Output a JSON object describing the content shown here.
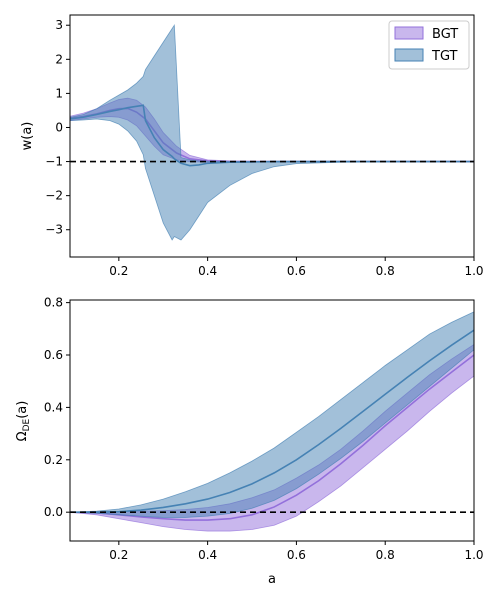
{
  "colors": {
    "bgt": "#9370DB",
    "tgt": "#4682B4",
    "ref_line": "#000000"
  },
  "chart_data": [
    {
      "type": "area",
      "title": "",
      "xlabel": "",
      "ylabel": "w(a)",
      "xlim": [
        0.09,
        1.0
      ],
      "ylim": [
        -3.8,
        3.3
      ],
      "x_ticks": [
        "0.2",
        "0.4",
        "0.6",
        "0.8",
        "1.0"
      ],
      "y_ticks": [
        "3",
        "2",
        "1",
        "0",
        "−1",
        "−2",
        "−3"
      ],
      "legend": {
        "placement": "top-right",
        "entries": [
          "BGT",
          "TGT"
        ]
      },
      "reference_line": {
        "y": -1,
        "style": "dashed"
      },
      "series": [
        {
          "name": "BGT",
          "color": "#9370DB",
          "x": [
            0.09,
            0.12,
            0.15,
            0.18,
            0.2,
            0.22,
            0.24,
            0.26,
            0.28,
            0.3,
            0.33,
            0.36,
            0.4,
            0.45,
            0.5,
            0.6,
            0.7,
            0.8,
            1.0
          ],
          "mean": [
            0.27,
            0.32,
            0.4,
            0.5,
            0.55,
            0.56,
            0.45,
            0.25,
            -0.1,
            -0.45,
            -0.75,
            -0.92,
            -0.98,
            -1.0,
            -1.0,
            -1.0,
            -1.0,
            -1.0,
            -1.0
          ],
          "lower": [
            0.2,
            0.25,
            0.3,
            0.32,
            0.3,
            0.22,
            0.05,
            -0.25,
            -0.55,
            -0.8,
            -0.95,
            -1.0,
            -1.02,
            -1.03,
            -1.02,
            -1.01,
            -1.0,
            -1.0,
            -1.0
          ],
          "upper": [
            0.33,
            0.42,
            0.55,
            0.72,
            0.82,
            0.86,
            0.8,
            0.6,
            0.25,
            -0.15,
            -0.55,
            -0.82,
            -0.95,
            -0.98,
            -0.99,
            -1.0,
            -1.0,
            -1.0,
            -1.0
          ]
        },
        {
          "name": "TGT",
          "color": "#4682B4",
          "x": [
            0.09,
            0.12,
            0.15,
            0.18,
            0.2,
            0.22,
            0.24,
            0.255,
            0.26,
            0.28,
            0.3,
            0.32,
            0.325,
            0.34,
            0.36,
            0.38,
            0.4,
            0.45,
            0.5,
            0.55,
            0.6,
            0.7,
            0.8,
            1.0
          ],
          "mean": [
            0.25,
            0.3,
            0.38,
            0.47,
            0.52,
            0.58,
            0.62,
            0.65,
            0.2,
            -0.3,
            -0.65,
            -0.85,
            -0.92,
            -1.05,
            -1.12,
            -1.1,
            -1.05,
            -1.02,
            -1.01,
            -1.0,
            -1.0,
            -1.0,
            -1.0,
            -1.0
          ],
          "lower": [
            0.2,
            0.22,
            0.25,
            0.2,
            0.1,
            -0.1,
            -0.4,
            -0.8,
            -1.2,
            -2.0,
            -2.8,
            -3.3,
            -3.2,
            -3.3,
            -3.0,
            -2.6,
            -2.2,
            -1.7,
            -1.35,
            -1.15,
            -1.06,
            -1.02,
            -1.01,
            -1.0
          ],
          "upper": [
            0.3,
            0.38,
            0.55,
            0.8,
            0.95,
            1.1,
            1.3,
            1.5,
            1.7,
            2.1,
            2.5,
            2.9,
            3.0,
            -0.88,
            -0.95,
            -0.98,
            -0.99,
            -1.0,
            -1.0,
            -1.0,
            -1.0,
            -1.0,
            -1.0,
            -1.0
          ]
        }
      ]
    },
    {
      "type": "area",
      "title": "",
      "xlabel": "a",
      "ylabel": "Ω_DE(a)",
      "xlim": [
        0.09,
        1.0
      ],
      "ylim": [
        -0.11,
        0.81
      ],
      "x_ticks": [
        "0.2",
        "0.4",
        "0.6",
        "0.8",
        "1.0"
      ],
      "y_ticks": [
        "0.8",
        "0.6",
        "0.4",
        "0.2",
        "0.0"
      ],
      "reference_line": {
        "y": 0,
        "style": "dashed"
      },
      "series": [
        {
          "name": "BGT",
          "color": "#9370DB",
          "x": [
            0.09,
            0.15,
            0.2,
            0.25,
            0.3,
            0.35,
            0.4,
            0.45,
            0.5,
            0.55,
            0.6,
            0.65,
            0.7,
            0.75,
            0.8,
            0.85,
            0.9,
            0.95,
            1.0
          ],
          "mean": [
            0.0,
            -0.003,
            -0.01,
            -0.018,
            -0.025,
            -0.03,
            -0.03,
            -0.025,
            -0.01,
            0.02,
            0.065,
            0.12,
            0.185,
            0.255,
            0.33,
            0.4,
            0.47,
            0.535,
            0.6
          ],
          "lower": [
            0.0,
            -0.01,
            -0.025,
            -0.04,
            -0.055,
            -0.066,
            -0.072,
            -0.072,
            -0.066,
            -0.05,
            -0.015,
            0.04,
            0.1,
            0.17,
            0.24,
            0.31,
            0.385,
            0.455,
            0.52
          ],
          "upper": [
            0.0,
            0.002,
            0.003,
            0.004,
            0.006,
            0.01,
            0.018,
            0.032,
            0.055,
            0.085,
            0.13,
            0.18,
            0.24,
            0.31,
            0.385,
            0.455,
            0.525,
            0.585,
            0.64
          ]
        },
        {
          "name": "TGT",
          "color": "#4682B4",
          "x": [
            0.09,
            0.15,
            0.2,
            0.25,
            0.3,
            0.35,
            0.4,
            0.45,
            0.5,
            0.55,
            0.6,
            0.65,
            0.7,
            0.75,
            0.8,
            0.85,
            0.9,
            0.95,
            1.0
          ],
          "mean": [
            0.0,
            0.0,
            0.002,
            0.008,
            0.018,
            0.032,
            0.05,
            0.075,
            0.108,
            0.15,
            0.2,
            0.258,
            0.32,
            0.385,
            0.45,
            0.515,
            0.578,
            0.638,
            0.695
          ],
          "lower": [
            0.0,
            -0.004,
            -0.01,
            -0.015,
            -0.02,
            -0.02,
            -0.015,
            -0.005,
            0.015,
            0.045,
            0.09,
            0.145,
            0.205,
            0.27,
            0.34,
            0.41,
            0.48,
            0.55,
            0.62
          ],
          "upper": [
            0.0,
            0.004,
            0.012,
            0.028,
            0.05,
            0.078,
            0.11,
            0.15,
            0.195,
            0.245,
            0.305,
            0.365,
            0.43,
            0.495,
            0.56,
            0.62,
            0.68,
            0.725,
            0.765
          ]
        }
      ]
    }
  ]
}
